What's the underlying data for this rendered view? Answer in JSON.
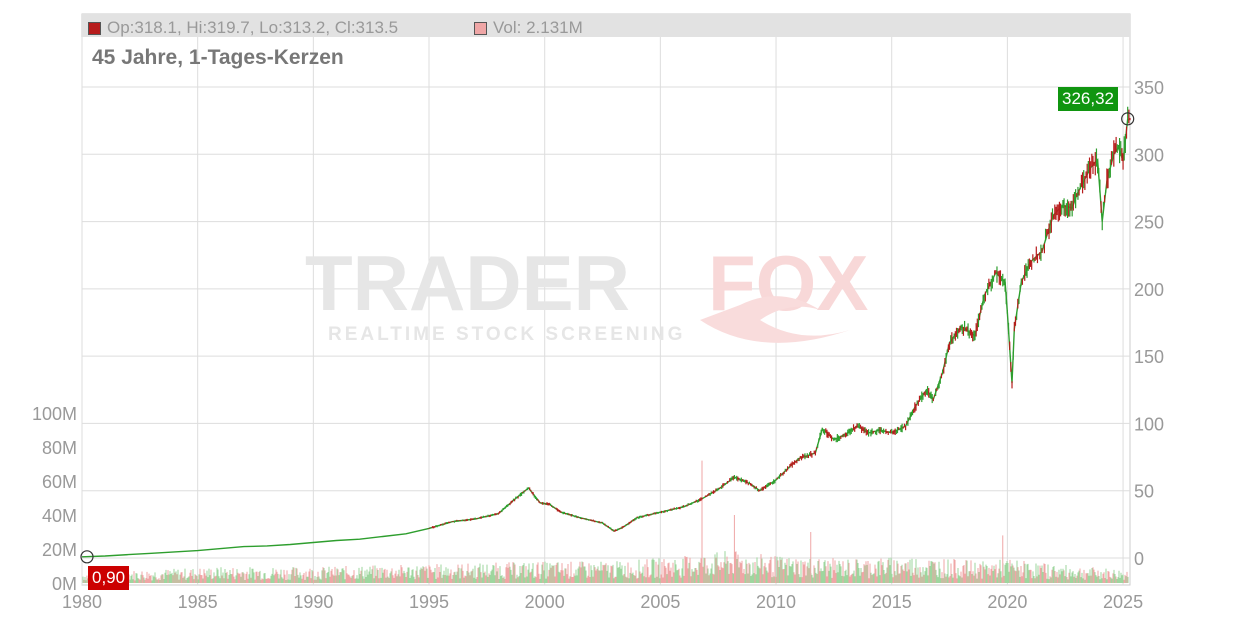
{
  "header": {
    "ohlc_text": "Op:318.1, Hi:319.7, Lo:313.2, Cl:313.5",
    "volume_text": "Vol: 2.131M",
    "subtitle": "45 Jahre, 1-Tages-Kerzen"
  },
  "watermark": {
    "brand_left": "TRADER",
    "brand_right": "FOX",
    "tagline": "REALTIME STOCK SCREENING"
  },
  "colors": {
    "up": "#2e9e2e",
    "down": "#b71c1c",
    "volume_up": "#9ed69e",
    "volume_down": "#efa6a6",
    "last_tag": "#109510",
    "first_tag": "#cc0000",
    "grid": "#dddddd",
    "axis_text": "#999999"
  },
  "chart_data": {
    "type": "line",
    "title": "45 Jahre, 1-Tages-Kerzen",
    "xlim": [
      1980,
      2025.3
    ],
    "ylim": [
      -10,
      350
    ],
    "x_ticks": [
      1980,
      1985,
      1990,
      1995,
      2000,
      2005,
      2010,
      2015,
      2020,
      2025
    ],
    "price_ticks": [
      0,
      50,
      100,
      150,
      200,
      250,
      300,
      350
    ],
    "volume_ticks": [
      "0M",
      "20M",
      "40M",
      "60M",
      "80M",
      "100M"
    ],
    "volume_tick_values": [
      0,
      20,
      40,
      60,
      80,
      100
    ],
    "last_value_label": "326,32",
    "first_value_label": "0,90",
    "last_price": 326.32,
    "first_price": 0.9,
    "grid": true,
    "series": [
      {
        "x": [
          1980,
          1981,
          1982,
          1983,
          1984,
          1985,
          1986,
          1987,
          1988,
          1989,
          1990,
          1991,
          1992,
          1993,
          1994,
          1995,
          1996,
          1997,
          1998,
          1998.8,
          1999.3,
          1999.8,
          2000.2,
          2000.7,
          2001.5,
          2002.5,
          2003.0,
          2003.4,
          2004,
          2005,
          2006,
          2006.8,
          2007.5,
          2008.2,
          2008.9,
          2009.3,
          2010,
          2010.6,
          2011,
          2011.7,
          2012.0,
          2012.5,
          2013,
          2013.5,
          2014,
          2014.5,
          2015,
          2015.6,
          2016,
          2016.5,
          2016.8,
          2017.2,
          2017.5,
          2018,
          2018.6,
          2019,
          2019.5,
          2019.9,
          2020.0,
          2020.2,
          2020.3,
          2020.6,
          2021,
          2021.5,
          2021.8,
          2022,
          2022.4,
          2022.8,
          2023,
          2023.6,
          2023.9,
          2024.1,
          2024.3,
          2024.6,
          2024.8,
          2025.0,
          2025.2
        ],
        "y": [
          0.9,
          1.5,
          2.5,
          3.5,
          4.5,
          5.5,
          7,
          8.5,
          9,
          10,
          11.5,
          13,
          14,
          16,
          18,
          22,
          27,
          29,
          33,
          45,
          52,
          41,
          40,
          34,
          30,
          26,
          20,
          23,
          30,
          34,
          38,
          44,
          51,
          60,
          55,
          50,
          58,
          68,
          74,
          78,
          96,
          88,
          92,
          98,
          93,
          95,
          93,
          98,
          112,
          125,
          118,
          138,
          160,
          172,
          165,
          195,
          212,
          205,
          182,
          130,
          170,
          205,
          220,
          228,
          245,
          255,
          262,
          260,
          270,
          290,
          296,
          250,
          280,
          300,
          305,
          295,
          326.32
        ]
      }
    ],
    "volume": {
      "x": [
        1980,
        1983,
        1986,
        1990,
        1995,
        2000,
        2003,
        2006,
        2008,
        2010,
        2013,
        2016,
        2019,
        2020,
        2022,
        2025
      ],
      "values": [
        4,
        5,
        6,
        6,
        7,
        8,
        8,
        10,
        12,
        10,
        9,
        10,
        8,
        9,
        7,
        5
      ]
    }
  }
}
